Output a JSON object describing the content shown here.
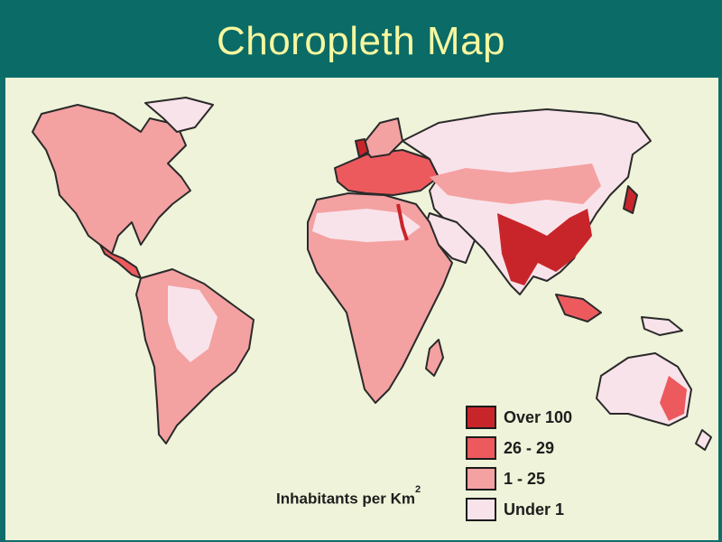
{
  "slide": {
    "title": "Choropleth Map"
  },
  "colors": {
    "background": "#eef3d9",
    "over_100": "#c8252b",
    "c26_29": "#ec5a5e",
    "c1_25": "#f4a1a2",
    "under_1": "#f9e3ea",
    "title_bar": "#0b6b67",
    "title_text": "#f6f7a0"
  },
  "legend": {
    "units_prefix": "Inhabitants per Km",
    "units_sup": "2",
    "items": [
      {
        "label": "Over 100",
        "color": "#c8252b"
      },
      {
        "label": "26 - 29",
        "color": "#ec5a5e"
      },
      {
        "label": "1 - 25",
        "color": "#f4a1a2"
      },
      {
        "label": "Under 1",
        "color": "#f9e3ea"
      }
    ]
  }
}
